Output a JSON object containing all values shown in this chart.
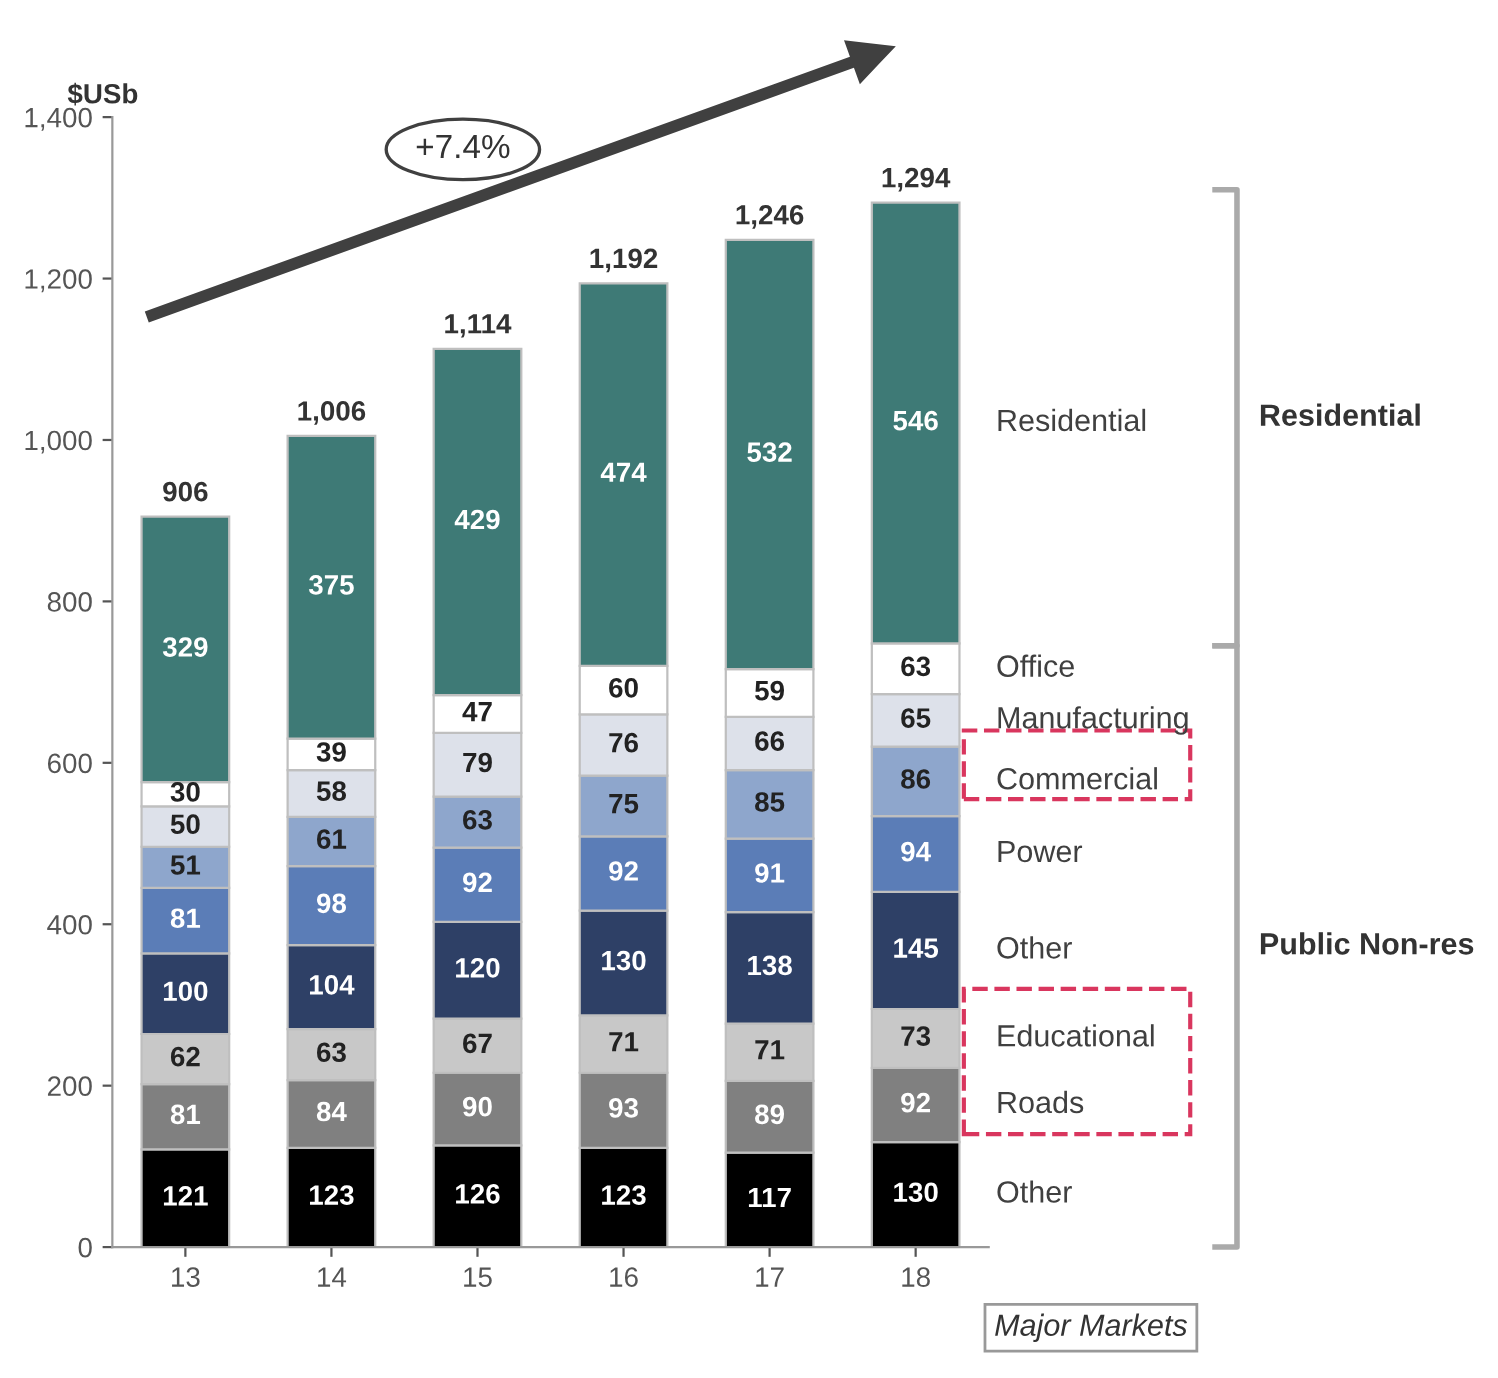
{
  "chart_data": {
    "type": "bar",
    "stacked": true,
    "ylabel": "$USb",
    "categories": [
      "13",
      "14",
      "15",
      "16",
      "17",
      "18"
    ],
    "series": [
      {
        "name": "Other",
        "color": "#000000",
        "values": [
          121,
          123,
          126,
          123,
          117,
          130
        ]
      },
      {
        "name": "Roads",
        "color": "#808080",
        "values": [
          81,
          84,
          90,
          93,
          89,
          92
        ]
      },
      {
        "name": "Educational",
        "color": "#c8c8c8",
        "values": [
          62,
          63,
          67,
          71,
          71,
          73
        ]
      },
      {
        "name": "Other",
        "color": "#2e4066",
        "values": [
          100,
          104,
          120,
          130,
          138,
          145
        ]
      },
      {
        "name": "Power",
        "color": "#5b7db7",
        "values": [
          81,
          98,
          92,
          92,
          91,
          94
        ]
      },
      {
        "name": "Commercial",
        "color": "#8ea6cc",
        "values": [
          51,
          61,
          63,
          75,
          85,
          86
        ]
      },
      {
        "name": "Manufacturing",
        "color": "#dde1ea",
        "values": [
          50,
          58,
          79,
          76,
          66,
          65
        ]
      },
      {
        "name": "Office",
        "color": "#ffffff",
        "values": [
          30,
          39,
          47,
          60,
          59,
          63
        ]
      },
      {
        "name": "Residential",
        "color": "#3e7a76",
        "values": [
          329,
          375,
          429,
          474,
          532,
          546
        ]
      }
    ],
    "totals": [
      "906",
      "1,006",
      "1,114",
      "1,192",
      "1,246",
      "1,294"
    ],
    "data_labels": true,
    "legend": false,
    "grid": false,
    "ylim": [
      0,
      1400
    ],
    "yticks": [
      0,
      200,
      400,
      600,
      800,
      {
        "value": 1000,
        "label": "1,000"
      },
      {
        "value": 1200,
        "label": "1,200"
      },
      {
        "value": 1400,
        "label": "1,400"
      }
    ],
    "annotations": [
      "+7.4%",
      "Residential",
      "Public Non-res",
      "Major Markets"
    ]
  }
}
